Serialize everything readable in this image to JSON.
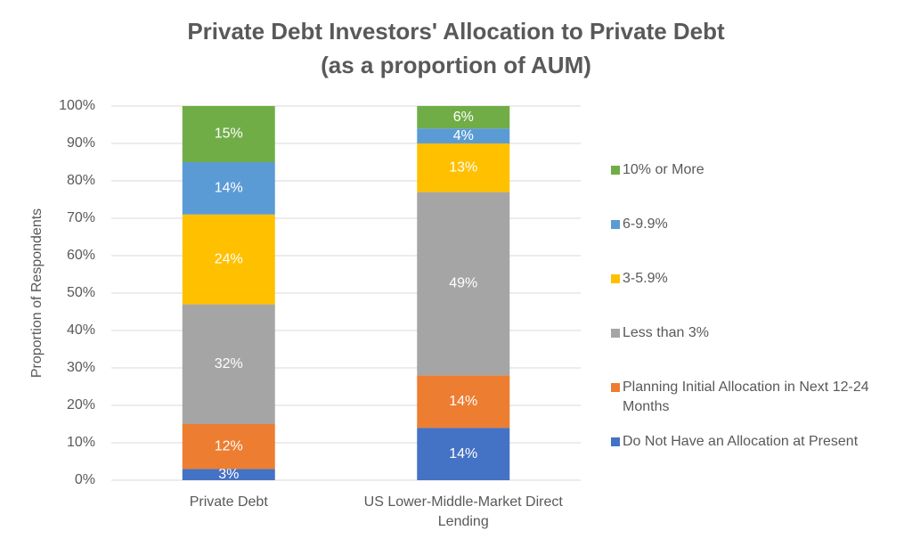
{
  "chart_data": {
    "type": "stacked-bar",
    "title": "Private Debt Investors' Allocation to Private Debt",
    "subtitle": "(as a proportion of AUM)",
    "y_label": "Proportion of Respondents",
    "categories": [
      "Private Debt",
      "US Lower-Middle-Market Direct Lending"
    ],
    "series": [
      {
        "name": "Do Not Have an Allocation at Present",
        "color": "#4472c4",
        "values": [
          3,
          14
        ],
        "value_labels": [
          "3%",
          "14%"
        ]
      },
      {
        "name": "Planning Initial Allocation in Next 12-24 Months",
        "color": "#ed7d31",
        "values": [
          12,
          14
        ],
        "value_labels": [
          "12%",
          "14%"
        ]
      },
      {
        "name": "Less than 3%",
        "color": "#a5a5a5",
        "values": [
          32,
          49
        ],
        "value_labels": [
          "32%",
          "49%"
        ]
      },
      {
        "name": "3-5.9%",
        "color": "#ffc000",
        "values": [
          24,
          13
        ],
        "value_labels": [
          "24%",
          "13%"
        ]
      },
      {
        "name": "6-9.9%",
        "color": "#5b9bd5",
        "values": [
          14,
          4
        ],
        "value_labels": [
          "14%",
          "4%"
        ]
      },
      {
        "name": "10% or More",
        "color": "#70ad47",
        "values": [
          15,
          6
        ],
        "value_labels": [
          "15%",
          "6%"
        ]
      }
    ],
    "ylim": [
      0,
      100
    ],
    "yticks": [
      {
        "value": 0,
        "label": "0%"
      },
      {
        "value": 10,
        "label": "10%"
      },
      {
        "value": 20,
        "label": "20%"
      },
      {
        "value": 30,
        "label": "30%"
      },
      {
        "value": 40,
        "label": "40%"
      },
      {
        "value": 50,
        "label": "50%"
      },
      {
        "value": 60,
        "label": "60%"
      },
      {
        "value": 70,
        "label": "70%"
      },
      {
        "value": 80,
        "label": "80%"
      },
      {
        "value": 90,
        "label": "90%"
      },
      {
        "value": 100,
        "label": "100%"
      }
    ],
    "grid": true,
    "legend": "right"
  }
}
